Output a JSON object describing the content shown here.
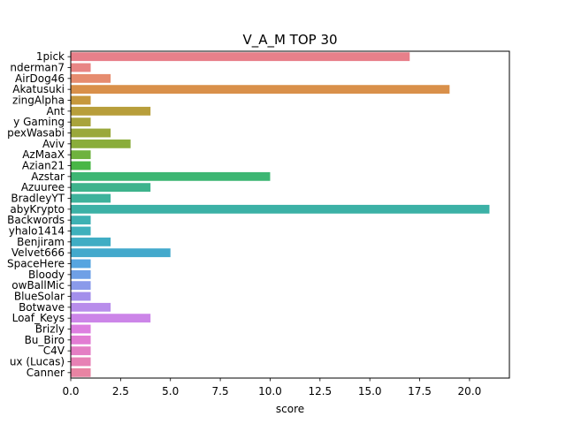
{
  "chart_data": {
    "type": "bar",
    "orientation": "horizontal",
    "title": "V_A_M TOP 30",
    "xlabel": "score",
    "ylabel": "",
    "xlim": [
      0,
      22
    ],
    "xticks": [
      "0.0",
      "2.5",
      "5.0",
      "7.5",
      "10.0",
      "12.5",
      "15.0",
      "17.5",
      "20.0"
    ],
    "grid": false,
    "categories": [
      "1pick",
      "nderman7",
      "AirDog46",
      "Akatusuki",
      "zingAlpha",
      "Ant",
      "y Gaming",
      "pexWasabi",
      "Aviv",
      "AzMaaX",
      "Azian21",
      "Azstar",
      "Azuuree",
      "BradleyYT",
      "abyKrypto",
      "Backwords",
      "yhalo1414",
      "Benjiram",
      "Velvet666",
      "SpaceHere",
      "Bloody",
      "owBallMic",
      "BlueSolar",
      "Botwave",
      "Loaf_Keys",
      "Brizly",
      "Bu_Biro",
      "C4V",
      "ux (Lucas)",
      "Canner"
    ],
    "values": [
      17,
      1,
      2,
      19,
      1,
      4,
      1,
      2,
      3,
      1,
      1,
      10,
      4,
      2,
      21,
      1,
      1,
      2,
      5,
      1,
      1,
      1,
      1,
      2,
      4,
      1,
      1,
      1,
      1,
      1
    ],
    "colors": [
      "#e8808a",
      "#e88584",
      "#e68c6f",
      "#d9904a",
      "#c6983d",
      "#b89e3b",
      "#a9a33b",
      "#9aa83b",
      "#8aad3b",
      "#6fb23e",
      "#48b646",
      "#3db673",
      "#3eb38c",
      "#3db29b",
      "#3cb1a6",
      "#3db1b3",
      "#3eb0bc",
      "#40adc4",
      "#43a9cc",
      "#56a5e0",
      "#6fa0e6",
      "#8a9aea",
      "#a38feb",
      "#b88deb",
      "#cc85e8",
      "#dd7fe0",
      "#e27cd3",
      "#e47ec4",
      "#e781b5",
      "#e884a3"
    ]
  }
}
